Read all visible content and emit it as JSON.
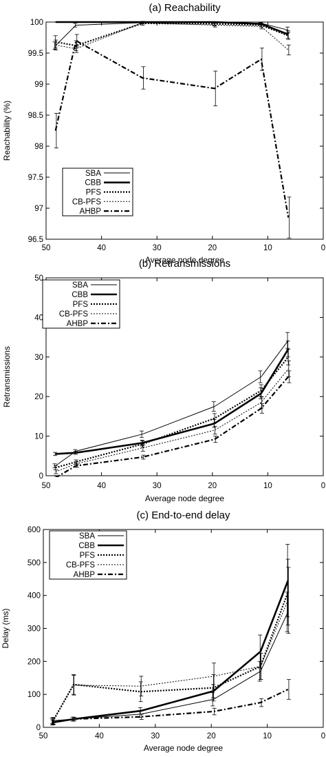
{
  "figure": {
    "chart_data": [
      {
        "type": "line",
        "title": "(a)  Reachability",
        "xlabel": "Average node degree",
        "ylabel": "Reachability (%)",
        "xlim": [
          50,
          0
        ],
        "ylim": [
          96.5,
          100
        ],
        "xticks": [
          50,
          40,
          30,
          20,
          10,
          0
        ],
        "yticks": [
          96.5,
          97,
          97.5,
          98,
          98.5,
          99,
          99.5,
          100
        ],
        "ytick_labels": [
          "96.5",
          "97",
          "97.5",
          "98",
          "98.5",
          "99",
          "99.5",
          "100"
        ],
        "legend_position": "bottom-left",
        "x": [
          48.3,
          44.6,
          32.6,
          19.6,
          11.2,
          6.3
        ],
        "series": [
          {
            "name": "SBA",
            "values": [
              99.62,
              99.95,
              99.99,
              99.99,
              99.98,
              99.87
            ],
            "err": [
              0.06,
              0.03,
              0.01,
              0.01,
              0.02,
              0.05
            ]
          },
          {
            "name": "CBB",
            "values": [
              100,
              100,
              100,
              100,
              99.97,
              99.8
            ],
            "err": [
              0.0,
              0.0,
              0.0,
              0.0,
              0.02,
              0.06
            ]
          },
          {
            "name": "PFS",
            "values": [
              99.68,
              99.62,
              99.98,
              99.97,
              99.95,
              99.78
            ],
            "err": [
              0.1,
              0.08,
              0.03,
              0.03,
              0.03,
              0.06
            ]
          },
          {
            "name": "CB-PFS",
            "values": [
              99.63,
              99.57,
              99.99,
              99.95,
              99.93,
              99.55
            ],
            "err": [
              0.08,
              0.06,
              0.02,
              0.03,
              0.04,
              0.08
            ]
          },
          {
            "name": "AHBP",
            "values": [
              98.25,
              99.7,
              99.1,
              98.93,
              99.4,
              96.85
            ],
            "err": [
              0.28,
              0.1,
              0.18,
              0.28,
              0.18,
              0.33
            ]
          }
        ]
      },
      {
        "type": "line",
        "title": "(b)  Retransmissions",
        "xlabel": "Average node degree",
        "ylabel": "Retransmissions",
        "xlim": [
          50,
          0
        ],
        "ylim": [
          0,
          50
        ],
        "xticks": [
          50,
          40,
          30,
          20,
          10,
          0
        ],
        "yticks": [
          0,
          10,
          20,
          30,
          40,
          50
        ],
        "ytick_labels": [
          "0",
          "10",
          "20",
          "30",
          "40",
          "50"
        ],
        "legend_position": "top-left",
        "x": [
          48.3,
          44.6,
          32.6,
          19.6,
          11.2,
          6.3
        ],
        "series": [
          {
            "name": "SBA",
            "values": [
              2.5,
              6.2,
              10.5,
              17.5,
              25.0,
              34.2
            ],
            "err": [
              0.5,
              0.4,
              0.8,
              1.2,
              1.5,
              2.0
            ]
          },
          {
            "name": "CBB",
            "values": [
              5.5,
              5.8,
              8.3,
              13.2,
              20.8,
              32.0
            ],
            "err": [
              0.4,
              0.4,
              0.7,
              1.0,
              1.4,
              2.0
            ]
          },
          {
            "name": "PFS",
            "values": [
              2.0,
              3.5,
              8.0,
              14.5,
              21.5,
              30.0
            ],
            "err": [
              0.5,
              0.5,
              0.8,
              1.2,
              1.5,
              2.0
            ]
          },
          {
            "name": "CB-PFS",
            "values": [
              1.0,
              3.0,
              7.0,
              11.5,
              18.5,
              27.0
            ],
            "err": [
              0.5,
              0.5,
              0.8,
              1.0,
              1.4,
              2.0
            ]
          },
          {
            "name": "AHBP",
            "values": [
              -0.5,
              2.5,
              4.7,
              9.2,
              17.0,
              25.0
            ],
            "err": [
              0.4,
              0.4,
              0.5,
              0.8,
              1.2,
              1.5
            ]
          }
        ]
      },
      {
        "type": "line",
        "title": "(c)  End-to-end delay",
        "xlabel": "Average node degree",
        "ylabel": "Delay (ms)",
        "xlim": [
          50,
          0
        ],
        "ylim": [
          0,
          600
        ],
        "xticks": [
          50,
          40,
          30,
          20,
          10,
          0
        ],
        "yticks": [
          0,
          100,
          200,
          300,
          400,
          500,
          600
        ],
        "ytick_labels": [
          "0",
          "100",
          "200",
          "300",
          "400",
          "500",
          "600"
        ],
        "legend_position": "top-left",
        "x": [
          48.3,
          44.6,
          32.6,
          19.6,
          11.2,
          6.3
        ],
        "series": [
          {
            "name": "SBA",
            "values": [
              20,
              25,
              40,
              85,
              170,
              350
            ],
            "err": [
              8,
              6,
              10,
              20,
              30,
              60
            ]
          },
          {
            "name": "CBB",
            "values": [
              15,
              25,
              50,
              110,
              230,
              445
            ],
            "err": [
              8,
              6,
              10,
              20,
              50,
              110
            ]
          },
          {
            "name": "PFS",
            "values": [
              18,
              130,
              108,
              120,
              185,
              410
            ],
            "err": [
              10,
              30,
              30,
              40,
              40,
              100
            ]
          },
          {
            "name": "CB-PFS",
            "values": [
              20,
              128,
              125,
              155,
              185,
              385
            ],
            "err": [
              10,
              30,
              30,
              40,
              40,
              100
            ]
          },
          {
            "name": "AHBP",
            "values": [
              15,
              25,
              32,
              48,
              75,
              115
            ],
            "err": [
              6,
              5,
              8,
              10,
              12,
              30
            ]
          }
        ]
      }
    ]
  }
}
